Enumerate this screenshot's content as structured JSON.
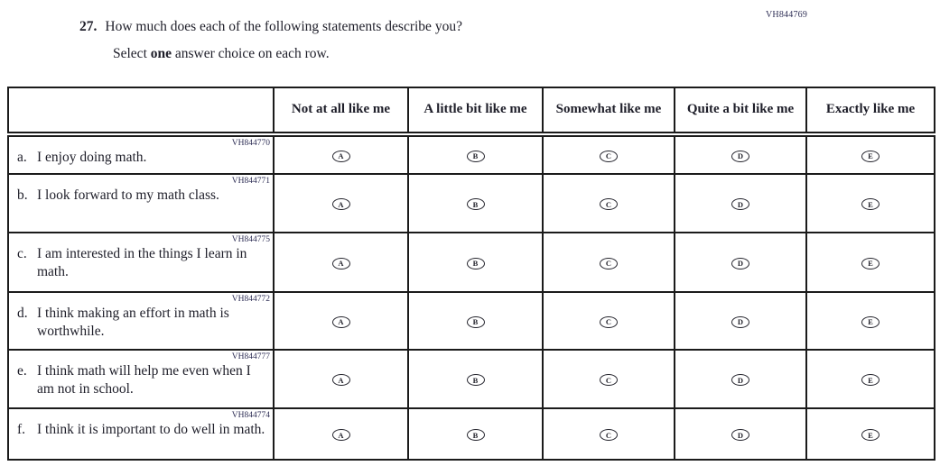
{
  "page": {
    "form_code": "VH844769",
    "question_number": "27.",
    "question_text": "How much does each of the following statements describe you?",
    "instruction_prefix": "Select ",
    "instruction_bold": "one",
    "instruction_suffix": " answer choice on each row."
  },
  "table": {
    "columns": [
      "Not at all like me",
      "A little bit like me",
      "Somewhat like me",
      "Quite a bit like me",
      "Exactly like me"
    ],
    "options": [
      "A",
      "B",
      "C",
      "D",
      "E"
    ],
    "rows": [
      {
        "code": "VH844770",
        "label": "a.",
        "statement": "I enjoy doing math."
      },
      {
        "code": "VH844771",
        "label": "b.",
        "statement": "I look forward to my math class."
      },
      {
        "code": "VH844775",
        "label": "c.",
        "statement": "I am interested in the things I learn in math."
      },
      {
        "code": "VH844772",
        "label": "d.",
        "statement": "I think making an effort in math is worthwhile."
      },
      {
        "code": "VH844777",
        "label": "e.",
        "statement": "I think math will help me even when I am not in school."
      },
      {
        "code": "VH844774",
        "label": "f.",
        "statement": "I think it is important to do well in math."
      }
    ]
  },
  "colors": {
    "border": "#1b1b1b",
    "text": "#1e1e29",
    "code_text": "#2e2e55",
    "background": "#ffffff"
  }
}
